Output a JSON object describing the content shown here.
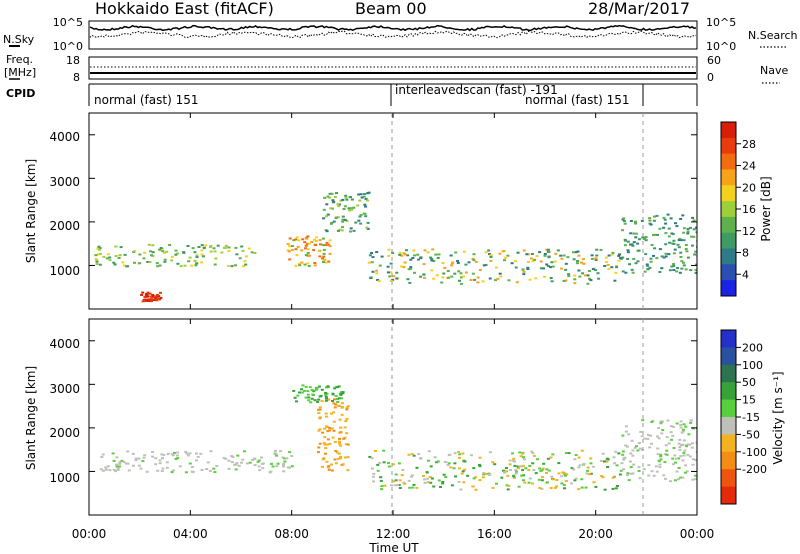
{
  "header": {
    "title": "Hokkaido East (fitACF)",
    "beam": "Beam 00",
    "date": "28/Mar/2017"
  },
  "noise_panel": {
    "left_label": "N.Sky",
    "right_label": "N.Search",
    "tick_top": "10^5",
    "tick_bottom": "10^0"
  },
  "freq_panel": {
    "left_label_line1": "Freq.",
    "left_label_line2": "[MHz]",
    "right_label": "Nave",
    "left_ticks": [
      "18",
      "8"
    ],
    "right_ticks": [
      "60",
      "0"
    ]
  },
  "cpid_panel": {
    "label": "CPID",
    "segments": [
      {
        "text": "normal (fast) 151",
        "start_hour": 0.0,
        "end_hour": 12.0
      },
      {
        "text": "interleavedscan (fast) -191",
        "start_hour": 12.0,
        "end_hour": 22.0
      },
      {
        "text": "normal (fast) 151",
        "start_hour": 12.0,
        "end_hour": 22.0
      },
      {
        "text": "",
        "start_hour": 22.0,
        "end_hour": 24.0
      }
    ]
  },
  "chart_data": [
    {
      "type": "heatmap",
      "name_label": "Power [dB]",
      "ylabel": "Slant Range [km]",
      "y_ticks": [
        "1000",
        "2000",
        "3000",
        "4000"
      ],
      "ylim": [
        0,
        4500
      ],
      "xlim": [
        0,
        24
      ],
      "colorbar": {
        "label": "Power [dB]",
        "tick_labels": [
          "4",
          "8",
          "12",
          "16",
          "20",
          "24",
          "28"
        ],
        "colors": [
          "#1a22e6",
          "#2a4fb0",
          "#2e7a86",
          "#3f9a63",
          "#5fb24b",
          "#9ccf39",
          "#f3d11c",
          "#f7a319",
          "#f36c12",
          "#e93c0c",
          "#d81d09"
        ]
      },
      "features": [
        {
          "range_km": [
            1000,
            1500
          ],
          "hours": [
            0.2,
            6.5
          ],
          "level": "12-20 dB"
        },
        {
          "range_km": [
            1000,
            1700
          ],
          "hours": [
            7.8,
            9.5
          ],
          "level": "16-24 dB"
        },
        {
          "range_km": [
            1800,
            2700
          ],
          "hours": [
            9.2,
            11.0
          ],
          "level": "12-20 dB"
        },
        {
          "range_km": [
            600,
            1400
          ],
          "hours": [
            11.0,
            21.0
          ],
          "level": "8-20 dB"
        },
        {
          "range_km": [
            200,
            400
          ],
          "hours": [
            2.0,
            2.8
          ],
          "level": "28 dB"
        },
        {
          "range_km": [
            800,
            2200
          ],
          "hours": [
            21.0,
            24.0
          ],
          "level": "8-16 dB"
        }
      ]
    },
    {
      "type": "heatmap",
      "ylabel": "Slant Range [km]",
      "y_ticks": [
        "1000",
        "2000",
        "3000",
        "4000"
      ],
      "ylim": [
        0,
        4500
      ],
      "xlim": [
        0,
        24
      ],
      "xlabel": "Time UT",
      "x_ticks": [
        "00:00",
        "04:00",
        "08:00",
        "12:00",
        "16:00",
        "20:00",
        "00:00"
      ],
      "colorbar": {
        "label": "Velocity [m s⁻¹]",
        "tick_labels": [
          "200",
          "100",
          "50",
          "15",
          "-15",
          "-50",
          "-100",
          "-200"
        ],
        "colors": [
          "#2430c9",
          "#2a50a0",
          "#2e7350",
          "#37a23a",
          "#58d03b",
          "#c0c0bb",
          "#f3b21e",
          "#f48d14",
          "#ee5510",
          "#e52a0c"
        ]
      },
      "features": [
        {
          "range_km": [
            1000,
            1500
          ],
          "hours": [
            0.2,
            8.0
          ],
          "velocity": "-15 to 15 m/s"
        },
        {
          "range_km": [
            1000,
            2700
          ],
          "hours": [
            9.0,
            10.2
          ],
          "velocity": "-50 m/s"
        },
        {
          "range_km": [
            2600,
            3000
          ],
          "hours": [
            8.0,
            10.0
          ],
          "velocity": "15-50 m/s"
        },
        {
          "range_km": [
            600,
            1500
          ],
          "hours": [
            11.0,
            21.0
          ],
          "velocity": "15 to -50 m/s"
        },
        {
          "range_km": [
            800,
            2200
          ],
          "hours": [
            21.0,
            24.0
          ],
          "velocity": "-15 to 15 m/s"
        }
      ]
    }
  ]
}
